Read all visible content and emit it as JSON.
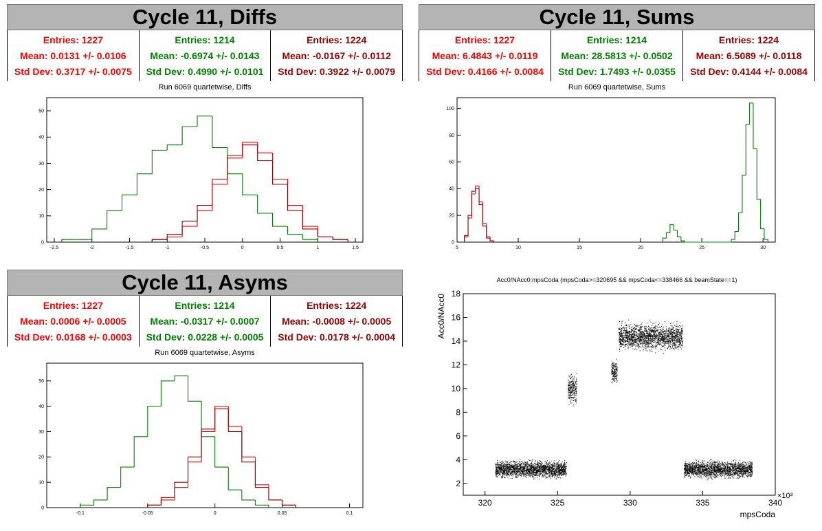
{
  "colors": {
    "red": "#ff0000",
    "green": "#008000",
    "darkred": "#990000",
    "black": "#000000"
  },
  "panels": {
    "diffs": {
      "title": "Cycle 11, Diffs",
      "subtitle": "Run 6069 quartetwise, Diffs",
      "stats": [
        {
          "entries": "Entries: 1227",
          "mean": "Mean: 0.0131 +/- 0.0106",
          "std": "Std Dev: 0.3717 +/- 0.0075",
          "color": "#ff0000"
        },
        {
          "entries": "Entries: 1214",
          "mean": "Mean: -0.6974 +/- 0.0143",
          "std": "Std Dev: 0.4990 +/- 0.0101",
          "color": "#008000"
        },
        {
          "entries": "Entries: 1224",
          "mean": "Mean: -0.0167 +/- 0.0112",
          "std": "Std Dev: 0.3922 +/- 0.0079",
          "color": "#990000"
        }
      ]
    },
    "sums": {
      "title": "Cycle 11, Sums",
      "subtitle": "Run 6069 quartetwise, Sums",
      "stats": [
        {
          "entries": "Entries: 1227",
          "mean": "Mean: 6.4843 +/- 0.0119",
          "std": "Std Dev: 0.4166 +/- 0.0084",
          "color": "#ff0000"
        },
        {
          "entries": "Entries: 1214",
          "mean": "Mean: 28.5813 +/- 0.0502",
          "std": "Std Dev: 1.7493 +/- 0.0355",
          "color": "#008000"
        },
        {
          "entries": "Entries: 1224",
          "mean": "Mean: 6.5089 +/- 0.0118",
          "std": "Std Dev: 0.4144 +/- 0.0084",
          "color": "#990000"
        }
      ]
    },
    "asyms": {
      "title": "Cycle 11, Asyms",
      "subtitle": "Run 6069 quartetwise, Asyms",
      "stats": [
        {
          "entries": "Entries: 1227",
          "mean": "Mean: 0.0006 +/- 0.0005",
          "std": "Std Dev: 0.0168 +/- 0.0003",
          "color": "#ff0000"
        },
        {
          "entries": "Entries: 1214",
          "mean": "Mean: -0.0317 +/- 0.0007",
          "std": "Std Dev: 0.0228 +/- 0.0005",
          "color": "#008000"
        },
        {
          "entries": "Entries: 1224",
          "mean": "Mean: -0.0008 +/- 0.0005",
          "std": "Std Dev: 0.0178 +/- 0.0004",
          "color": "#990000"
        }
      ]
    },
    "scatter": {
      "title": "Acc0/NAcc0:mpsCoda (mpsCoda>=320695 && mpsCoda<=338466 && beamState==1)"
    }
  },
  "chart_data": [
    {
      "type": "histogram",
      "title": "Run 6069 quartetwise, Diffs",
      "xlim": [
        -2.6,
        1.6
      ],
      "ylim": [
        0,
        55
      ],
      "xticks": [
        "-2.5",
        "-2",
        "-1.5",
        "-1",
        "-0.5",
        "0",
        "0.5",
        "1",
        "1.5"
      ],
      "xtick_values": [
        -2.5,
        -2,
        -1.5,
        -1,
        -0.5,
        0,
        0.5,
        1,
        1.5
      ],
      "yticks": [
        "0",
        "10",
        "20",
        "30",
        "40",
        "50"
      ],
      "ytick_values": [
        0,
        10,
        20,
        30,
        40,
        50
      ],
      "series": [
        {
          "color": "#008000",
          "bin_edges": [
            -2.4,
            -2.2,
            -2.0,
            -1.8,
            -1.6,
            -1.4,
            -1.2,
            -1.0,
            -0.8,
            -0.6,
            -0.4,
            -0.2,
            0.0,
            0.2,
            0.4,
            0.6,
            0.8,
            1.0
          ],
          "counts": [
            1,
            1,
            5,
            12,
            18,
            26,
            35,
            37,
            44,
            48,
            36,
            26,
            18,
            11,
            6,
            3,
            1
          ]
        },
        {
          "color": "#ff0000",
          "bin_edges": [
            -1.2,
            -1.0,
            -0.8,
            -0.6,
            -0.4,
            -0.2,
            0.0,
            0.2,
            0.4,
            0.6,
            0.8,
            1.0,
            1.2,
            1.4
          ],
          "counts": [
            1,
            2,
            6,
            12,
            22,
            32,
            38,
            34,
            24,
            14,
            6,
            2,
            1
          ]
        },
        {
          "color": "#990000",
          "bin_edges": [
            -1.2,
            -1.0,
            -0.8,
            -0.6,
            -0.4,
            -0.2,
            0.0,
            0.2,
            0.4,
            0.6,
            0.8,
            1.0,
            1.2,
            1.4
          ],
          "counts": [
            1,
            3,
            8,
            14,
            24,
            33,
            37,
            31,
            22,
            12,
            5,
            2,
            1
          ]
        }
      ]
    },
    {
      "type": "histogram",
      "title": "Run 6069 quartetwise, Sums",
      "xlim": [
        5,
        31
      ],
      "ylim": [
        0,
        108
      ],
      "xticks": [
        "5",
        "10",
        "15",
        "20",
        "25",
        "30"
      ],
      "xtick_values": [
        5,
        10,
        15,
        20,
        25,
        30
      ],
      "yticks": [
        "0",
        "20",
        "40",
        "60",
        "80",
        "100"
      ],
      "ytick_values": [
        0,
        20,
        40,
        60,
        80,
        100
      ],
      "series": [
        {
          "color": "#008000",
          "bin_edges": [
            21.8,
            22.1,
            22.4,
            22.7,
            23.0,
            23.3,
            23.6,
            27.4,
            27.7,
            28.0,
            28.3,
            28.6,
            28.9,
            29.2,
            29.5,
            29.8,
            30.1,
            30.4
          ],
          "counts": [
            3,
            7,
            13,
            9,
            4,
            1,
            0,
            2,
            8,
            22,
            50,
            88,
            104,
            70,
            32,
            10,
            2
          ]
        },
        {
          "color": "#ff0000",
          "bin_edges": [
            5.6,
            5.9,
            6.2,
            6.5,
            6.8,
            7.1,
            7.4,
            7.7,
            8.0
          ],
          "counts": [
            4,
            18,
            36,
            42,
            30,
            14,
            4,
            1
          ]
        },
        {
          "color": "#990000",
          "bin_edges": [
            5.6,
            5.9,
            6.2,
            6.5,
            6.8,
            7.1,
            7.4,
            7.7,
            8.0
          ],
          "counts": [
            5,
            20,
            38,
            40,
            28,
            12,
            3,
            1
          ]
        }
      ]
    },
    {
      "type": "histogram",
      "title": "Run 6069 quartetwise, Asyms",
      "xlim": [
        -0.125,
        0.11
      ],
      "ylim": [
        0,
        57
      ],
      "xticks": [
        "-0.1",
        "-0.05",
        "0",
        "0.05",
        "0.1"
      ],
      "xtick_values": [
        -0.1,
        -0.05,
        0,
        0.05,
        0.1
      ],
      "yticks": [
        "0",
        "10",
        "20",
        "30",
        "40",
        "50"
      ],
      "ytick_values": [
        0,
        10,
        20,
        30,
        40,
        50
      ],
      "series": [
        {
          "color": "#008000",
          "bin_edges": [
            -0.1,
            -0.09,
            -0.08,
            -0.07,
            -0.06,
            -0.05,
            -0.04,
            -0.03,
            -0.02,
            -0.01,
            0.0,
            0.01,
            0.02,
            0.03,
            0.04
          ],
          "counts": [
            1,
            3,
            8,
            16,
            28,
            40,
            50,
            52,
            42,
            28,
            16,
            7,
            3,
            1
          ]
        },
        {
          "color": "#ff0000",
          "bin_edges": [
            -0.05,
            -0.04,
            -0.03,
            -0.02,
            -0.01,
            0.0,
            0.01,
            0.02,
            0.03,
            0.04,
            0.05,
            0.06
          ],
          "counts": [
            1,
            3,
            8,
            18,
            30,
            40,
            32,
            20,
            9,
            3,
            1
          ]
        },
        {
          "color": "#990000",
          "bin_edges": [
            -0.05,
            -0.04,
            -0.03,
            -0.02,
            -0.01,
            0.0,
            0.01,
            0.02,
            0.03,
            0.04,
            0.05,
            0.06
          ],
          "counts": [
            1,
            4,
            10,
            20,
            31,
            39,
            30,
            18,
            8,
            3,
            1
          ]
        }
      ]
    },
    {
      "type": "scatter",
      "title": "Acc0/NAcc0:mpsCoda (mpsCoda>=320695 && mpsCoda<=338466 && beamState==1)",
      "xlabel": "mpsCoda",
      "ylabel": "Acc0/NAcc0",
      "x_multiplier": "×10³",
      "xlim": [
        318.5,
        340
      ],
      "ylim": [
        1,
        18
      ],
      "xticks": [
        "320",
        "325",
        "330",
        "335",
        "340"
      ],
      "xtick_values": [
        320,
        325,
        330,
        335,
        340
      ],
      "yticks": [
        "2",
        "4",
        "6",
        "8",
        "10",
        "12",
        "14",
        "16",
        "18"
      ],
      "ytick_values": [
        2,
        4,
        6,
        8,
        10,
        12,
        14,
        16,
        18
      ],
      "clusters": [
        {
          "x": [
            320.7,
            325.6
          ],
          "y_center": 3.2,
          "y_spread": 0.9
        },
        {
          "x": [
            325.7,
            326.3
          ],
          "y_center": 10.0,
          "y_spread": 1.6
        },
        {
          "x": [
            328.7,
            329.1
          ],
          "y_center": 11.4,
          "y_spread": 1.3
        },
        {
          "x": [
            329.2,
            333.6
          ],
          "y_center": 14.4,
          "y_spread": 1.4
        },
        {
          "x": [
            333.7,
            338.4
          ],
          "y_center": 3.2,
          "y_spread": 0.9
        }
      ]
    }
  ]
}
